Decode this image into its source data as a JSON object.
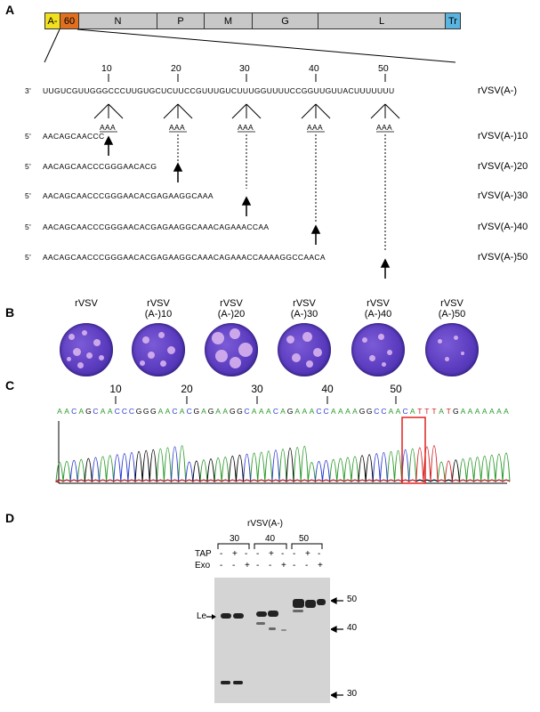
{
  "panels": {
    "a": "A",
    "b": "B",
    "c": "C",
    "d": "D"
  },
  "genome": {
    "segments": [
      {
        "label": "A-",
        "color": "#f0e020"
      },
      {
        "label": "60",
        "color": "#e07020"
      },
      {
        "label": "N",
        "color": "#c8c8c8"
      },
      {
        "label": "P",
        "color": "#c8c8c8"
      },
      {
        "label": "M",
        "color": "#c8c8c8"
      },
      {
        "label": "G",
        "color": "#c8c8c8"
      },
      {
        "label": "L",
        "color": "#c8c8c8"
      },
      {
        "label": "Tr",
        "color": "#59b4e0"
      }
    ]
  },
  "panelA": {
    "ticks": [
      "10",
      "20",
      "30",
      "40",
      "50"
    ],
    "template_prefix": "3'",
    "template": "UUGUCGUUGGGCCCUUGUGCUCUUCCGUUUGUCUUUGGUUUUCCGGUUGUUACUUUUUUU",
    "template_label": "rVSV(A-)",
    "aaa": "AAA",
    "rows": [
      {
        "prefix": "5'",
        "seq": "AACAGCAACCC",
        "label": "rVSV(A-)10"
      },
      {
        "prefix": "5'",
        "seq": "AACAGCAACCCGGGAACACG",
        "label": "rVSV(A-)20"
      },
      {
        "prefix": "5'",
        "seq": "AACAGCAACCCGGGAACACGAGAAGGCAAA",
        "label": "rVSV(A-)30"
      },
      {
        "prefix": "5'",
        "seq": "AACAGCAACCCGGGAACACGAGAAGGCAAACAGAAACCAA",
        "label": "rVSV(A-)40"
      },
      {
        "prefix": "5'",
        "seq": "AACAGCAACCCGGGAACACGAGAAGGCAAACAGAAACCAAAAGGCCAACA",
        "label": "rVSV(A-)50"
      }
    ]
  },
  "panelB": {
    "dishes": [
      {
        "line1": "rVSV",
        "line2": ""
      },
      {
        "line1": "rVSV",
        "line2": "(A-)10"
      },
      {
        "line1": "rVSV",
        "line2": "(A-)20"
      },
      {
        "line1": "rVSV",
        "line2": "(A-)30"
      },
      {
        "line1": "rVSV",
        "line2": "(A-)40"
      },
      {
        "line1": "rVSV",
        "line2": "(A-)50"
      }
    ]
  },
  "panelC": {
    "ticks": [
      "10",
      "20",
      "30",
      "40",
      "50"
    ],
    "sequence": "AACAGCAACCCGGGAACACGAGAAGGCAAACAGAAACCAAAAGGCCAACATTTATGAAAAAAA",
    "base_colors": {
      "A": "#2a9a2a",
      "C": "#2a3ad0",
      "G": "#000000",
      "T": "#d02020"
    },
    "highlight_color": "#e02020"
  },
  "panelD": {
    "title": "rVSV(A-)",
    "groups": [
      "30",
      "40",
      "50"
    ],
    "tap_label": "TAP",
    "exo_label": "Exo",
    "tap": [
      "-",
      "+",
      "-",
      "-",
      "+",
      "-",
      "-",
      "+",
      "-"
    ],
    "exo": [
      "-",
      "-",
      "+",
      "-",
      "-",
      "+",
      "-",
      "-",
      "+"
    ],
    "le_label": "Le",
    "markers": [
      "50",
      "40",
      "30"
    ]
  }
}
